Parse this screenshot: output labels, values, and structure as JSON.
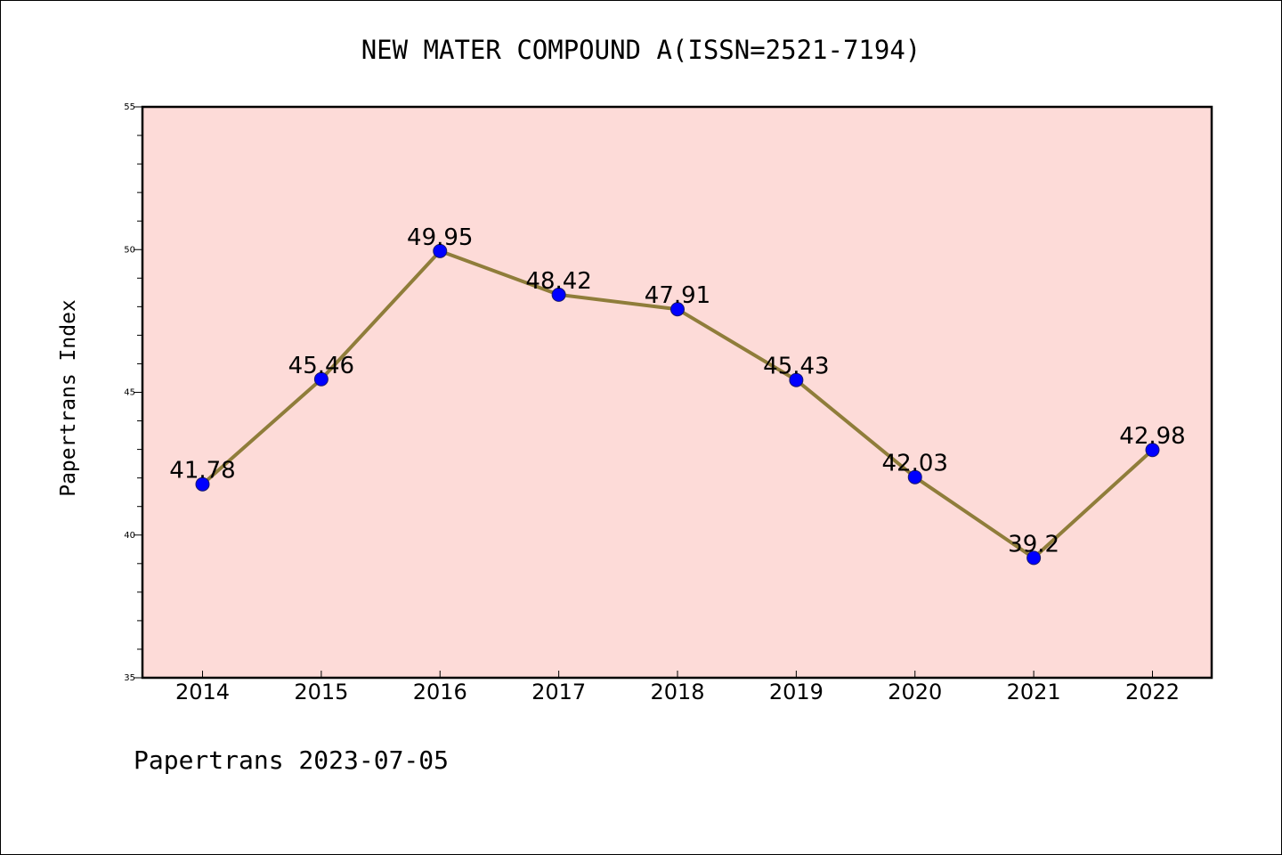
{
  "chart_data": {
    "type": "line",
    "title": "NEW MATER COMPOUND A(ISSN=2521-7194)",
    "ylabel": "Papertrans Index",
    "xlabel": "",
    "categories": [
      "2014",
      "2015",
      "2016",
      "2017",
      "2018",
      "2019",
      "2020",
      "2021",
      "2022"
    ],
    "values": [
      41.78,
      45.46,
      49.95,
      48.42,
      47.91,
      45.43,
      42.03,
      39.2,
      42.98
    ],
    "data_labels": [
      "41.78",
      "45.46",
      "49.95",
      "48.42",
      "47.91",
      "45.43",
      "42.03",
      "39.2",
      "42.98"
    ],
    "ylim": [
      35,
      55
    ],
    "yticks": [
      "35",
      "40",
      "45",
      "50",
      "55"
    ],
    "grid": false,
    "footer": "Papertrans 2023-07-05",
    "colors": {
      "plot_background": "#fddbd8",
      "line": "#8f7d3a",
      "marker": "#0000ff",
      "marker_edge": "#1a1a6a"
    }
  }
}
